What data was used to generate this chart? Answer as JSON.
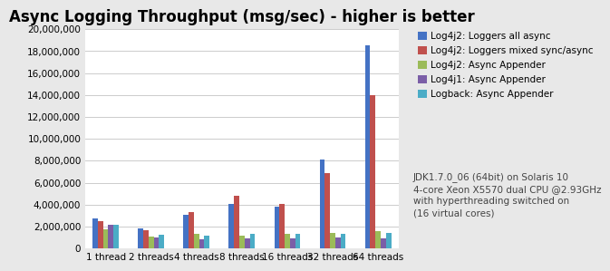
{
  "title": "Async Logging Throughput (msg/sec) - higher is better",
  "categories": [
    "1 thread",
    "2 threads",
    "4 threads",
    "8 threads",
    "16 threads",
    "32 threads",
    "64 threads"
  ],
  "series": [
    {
      "label": "Log4j2: Loggers all async",
      "color": "#4472C4",
      "values": [
        2700000,
        1800000,
        3100000,
        4100000,
        3800000,
        8100000,
        18500000
      ]
    },
    {
      "label": "Log4j2: Loggers mixed sync/async",
      "color": "#C0504D",
      "values": [
        2500000,
        1650000,
        3350000,
        4800000,
        4100000,
        6900000,
        14000000
      ]
    },
    {
      "label": "Log4j2: Async Appender",
      "color": "#9BBB59",
      "values": [
        1750000,
        1100000,
        1350000,
        1200000,
        1300000,
        1400000,
        1600000
      ]
    },
    {
      "label": "Log4j1: Async Appender",
      "color": "#7B5EA7",
      "values": [
        2200000,
        1000000,
        850000,
        900000,
        950000,
        1000000,
        900000
      ]
    },
    {
      "label": "Logback: Async Appender",
      "color": "#4BACC6",
      "values": [
        2150000,
        1250000,
        1150000,
        1300000,
        1350000,
        1350000,
        1400000
      ]
    }
  ],
  "ylim": [
    0,
    20000000
  ],
  "ytick_interval": 2000000,
  "annotation": "JDK1.7.0_06 (64bit) on Solaris 10\n4-core Xeon X5570 dual CPU @2.93GHz\nwith hyperthreading switched on\n(16 virtual cores)",
  "background_color": "#E8E8E8",
  "plot_bg_color": "#FFFFFF",
  "title_fontsize": 12,
  "legend_fontsize": 7.5,
  "tick_fontsize": 7.5,
  "annotation_fontsize": 7.5
}
